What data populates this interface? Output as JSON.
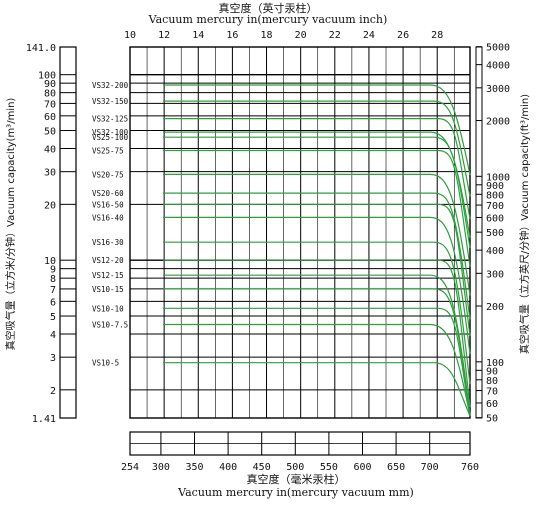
{
  "chart_data": {
    "type": "line",
    "title_top_cn": "真空度（英寸汞柱）",
    "title_top_en": "Vacuum mercury in(mercury vacuum inch)",
    "xlabel_cn": "真空度（毫米汞柱）",
    "xlabel_en": "Vacuum mercury in(mercury vacuum mm)",
    "ylabel_left": "真空吸气量（立方米/分钟）Vacuum capacity(m³/min)",
    "ylabel_right": "真空吸气量（立方英尺/分钟）Vacuum capacity(ft³/min)",
    "x_top_ticks": [
      "10",
      "12",
      "14",
      "16",
      "18",
      "20",
      "22",
      "24",
      "26",
      "28"
    ],
    "x_bottom_ticks": [
      "254",
      "300",
      "350",
      "400",
      "450",
      "500",
      "550",
      "600",
      "650",
      "700",
      "760"
    ],
    "y_left_ticks": [
      "141.0",
      "100",
      "90",
      "80",
      "70",
      "60",
      "50",
      "40",
      "30",
      "20",
      "10",
      "9",
      "8",
      "7",
      "6",
      "5",
      "4",
      "3",
      "2",
      "1.41"
    ],
    "y_right_ticks": [
      "5000",
      "4000",
      "3000",
      "2000",
      "1000",
      "900",
      "800",
      "700",
      "600",
      "500",
      "400",
      "300",
      "200",
      "100",
      "90",
      "80",
      "70",
      "60",
      "50"
    ],
    "x_range_mmHg": [
      254,
      760
    ],
    "y_range_m3min": [
      1.41,
      141
    ],
    "y_scale": "log",
    "grid": true,
    "series": [
      {
        "name": "VS32-200",
        "capacity": 88
      },
      {
        "name": "VS32-150",
        "capacity": 72
      },
      {
        "name": "VS32-125",
        "capacity": 58
      },
      {
        "name": "VS32-100",
        "capacity": 49
      },
      {
        "name": "VS25-100",
        "capacity": 46
      },
      {
        "name": "VS25-75",
        "capacity": 39
      },
      {
        "name": "VS20-75",
        "capacity": 29
      },
      {
        "name": "VS20-60",
        "capacity": 23
      },
      {
        "name": "VS16-50",
        "capacity": 20
      },
      {
        "name": "VS16-40",
        "capacity": 17
      },
      {
        "name": "VS16-30",
        "capacity": 12.5
      },
      {
        "name": "VS12-20",
        "capacity": 10
      },
      {
        "name": "VS12-15",
        "capacity": 8.3
      },
      {
        "name": "VS10-15",
        "capacity": 7
      },
      {
        "name": "VS10-10",
        "capacity": 5.5
      },
      {
        "name": "VS10-7.5",
        "capacity": 4.5
      },
      {
        "name": "VS10-5",
        "capacity": 2.8
      }
    ],
    "colors": {
      "curve": "#2e9e3e",
      "grid": "#000000",
      "text": "#111111"
    }
  }
}
